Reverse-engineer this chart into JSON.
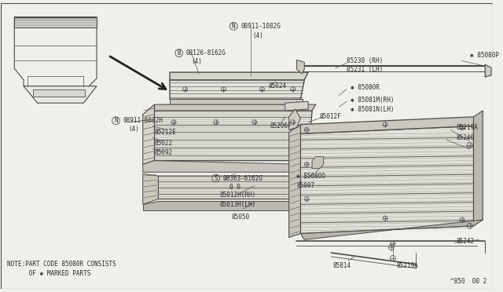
{
  "bg_color": "#f0f0ea",
  "line_color": "#4a4a4a",
  "text_color": "#2a2a2a",
  "fig_width": 6.4,
  "fig_height": 3.72,
  "dpi": 100,
  "note_line1": "NOTE:PART CODE 85080R CONSISTS",
  "note_line2": "      OF ✱ MARKED PARTS",
  "footer": "^850  00 2"
}
